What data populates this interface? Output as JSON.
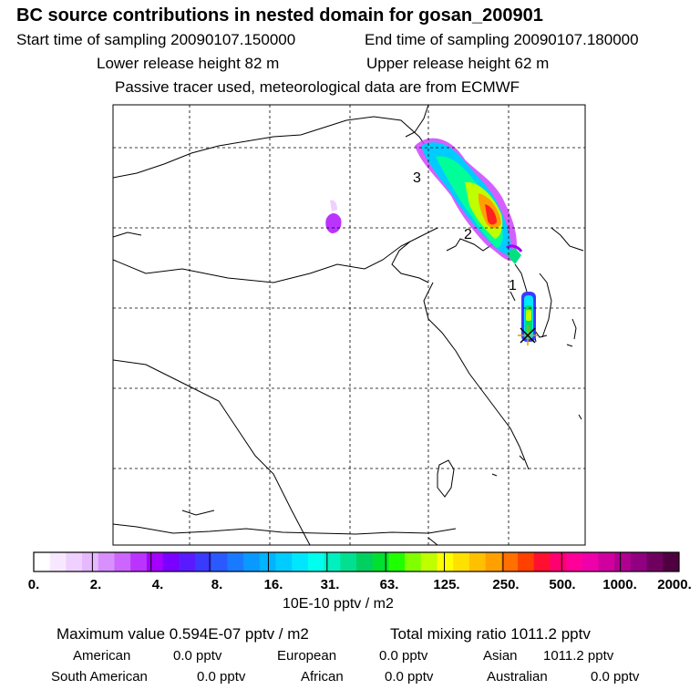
{
  "header": {
    "title": "BC  source contributions in nested domain for gosan_200901",
    "start_time": "Start time of sampling 20090107.150000",
    "end_time": "End time of sampling 20090107.180000",
    "lower_release": "Lower release height   82 m",
    "upper_release": "Upper release height   62 m",
    "tracer_note": "Passive tracer used, meteorological data are from ECMWF"
  },
  "map": {
    "markers": [
      "1",
      "2",
      "3"
    ]
  },
  "colorbar": {
    "ticks": [
      "0.",
      "2.",
      "4.",
      "8.",
      "16.",
      "31.",
      "63.",
      "125.",
      "250.",
      "500.",
      "1000.",
      "2000."
    ],
    "colors": [
      "#ffffff",
      "#f8e8ff",
      "#f0d0ff",
      "#e6b8ff",
      "#d890ff",
      "#cc66ff",
      "#bb33ff",
      "#a600ff",
      "#7a00ff",
      "#5a1aff",
      "#3a3aff",
      "#2a5aff",
      "#1a7aff",
      "#0a9aff",
      "#00b4ff",
      "#00ccff",
      "#00e6ff",
      "#00ffee",
      "#00f0c0",
      "#00e090",
      "#00d060",
      "#00e030",
      "#20ff00",
      "#80ff00",
      "#c0ff00",
      "#ffff00",
      "#ffe000",
      "#ffc000",
      "#ffa000",
      "#ff7000",
      "#ff4000",
      "#ff1030",
      "#ff0070",
      "#ff0099",
      "#ee00aa",
      "#d000a0",
      "#b00090",
      "#900080",
      "#700060",
      "#500040"
    ],
    "units": "10E-10 pptv / m2"
  },
  "summary": {
    "max_label": "Maximum value  0.594E-07 pptv / m2",
    "total_label": "Total mixing ratio      1011.2 pptv"
  },
  "sources": [
    {
      "name": "American",
      "value": "0.0 pptv"
    },
    {
      "name": "European",
      "value": "0.0 pptv"
    },
    {
      "name": "Asian",
      "value": "1011.2 pptv"
    },
    {
      "name": "South American",
      "value": "0.0 pptv"
    },
    {
      "name": "African",
      "value": "0.0 pptv"
    },
    {
      "name": "Australian",
      "value": "0.0 pptv"
    }
  ]
}
